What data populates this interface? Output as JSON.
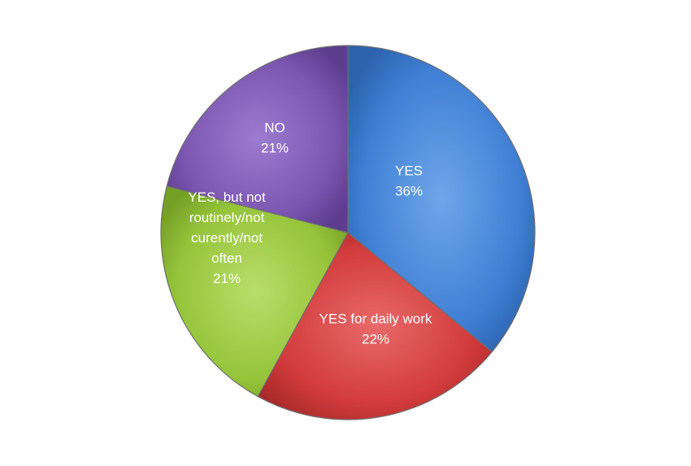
{
  "chart_data": {
    "type": "pie",
    "title": "",
    "slices": [
      {
        "label": "YES",
        "value": 36,
        "value_label": "36%",
        "label_lines": [
          "YES"
        ],
        "color": "#3f7fd4",
        "color_light": "#6fa6ea",
        "color_dark": "#2c63ad"
      },
      {
        "label": "YES for daily work",
        "value": 22,
        "value_label": "22%",
        "label_lines": [
          "YES for daily work"
        ],
        "color": "#d23b3b",
        "color_light": "#e86a6a",
        "color_dark": "#a82a2a"
      },
      {
        "label": "YES, but not routinely/not curently/not often",
        "value": 21,
        "value_label": "21%",
        "label_lines": [
          "YES, but not",
          "routinely/not",
          "curently/not",
          "often"
        ],
        "color": "#95c43a",
        "color_light": "#b9de6a",
        "color_dark": "#74a026"
      },
      {
        "label": "NO",
        "value": 21,
        "value_label": "21%",
        "label_lines": [
          "NO"
        ],
        "color": "#7b56b0",
        "color_light": "#9c7ccf",
        "color_dark": "#5d3e8e"
      }
    ],
    "start_angle": "12 o'clock",
    "direction": "clockwise",
    "legend": "none"
  }
}
